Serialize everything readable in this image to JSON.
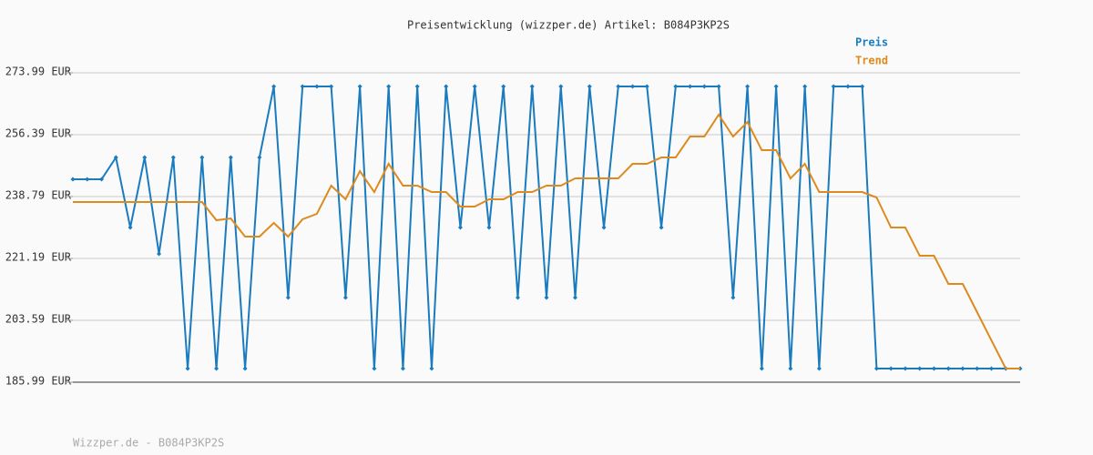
{
  "chart_data": {
    "type": "line",
    "title": "Preisentwicklung (wizzper.de) Artikel: B084P3KP2S",
    "footer": "Wizzper.de - B084P3KP2S",
    "ylim": [
      185.99,
      273.99
    ],
    "yticks": [
      {
        "value": 185.99,
        "label": "185.99 EUR"
      },
      {
        "value": 203.59,
        "label": "203.59 EUR"
      },
      {
        "value": 221.19,
        "label": "221.19 EUR"
      },
      {
        "value": 238.79,
        "label": "238.79 EUR"
      },
      {
        "value": 256.39,
        "label": "256.39 EUR"
      },
      {
        "value": 273.99,
        "label": "273.99 EUR"
      }
    ],
    "grid": true,
    "legend": "top-right",
    "series": [
      {
        "name": "Preis",
        "color": "#1a7bbf",
        "markers": true,
        "values": [
          243.7,
          243.7,
          243.7,
          249.91,
          229.99,
          249.91,
          222.48,
          249.91,
          189.87,
          249.91,
          189.87,
          249.91,
          189.87,
          249.91,
          270.1,
          210.06,
          270.1,
          270.1,
          270.1,
          210.06,
          270.1,
          189.87,
          270.1,
          189.87,
          270.1,
          189.87,
          270.1,
          229.99,
          270.1,
          229.99,
          270.1,
          210.06,
          270.1,
          210.06,
          270.1,
          210.06,
          270.1,
          229.99,
          270.1,
          270.1,
          270.1,
          229.99,
          270.1,
          270.1,
          270.1,
          270.1,
          210.06,
          270.1,
          189.87,
          270.1,
          189.87,
          270.1,
          189.87,
          270.1,
          270.1,
          270.1,
          189.87,
          189.87,
          189.87,
          189.87,
          189.87,
          189.87,
          189.87,
          189.87,
          189.87,
          189.87,
          189.87
        ]
      },
      {
        "name": "Trend",
        "color": "#dd8a1e",
        "markers": false,
        "values": [
          237.23,
          237.23,
          237.23,
          237.23,
          237.23,
          237.23,
          237.23,
          237.23,
          237.23,
          237.23,
          232.06,
          232.57,
          227.4,
          227.4,
          231.28,
          227.4,
          232.32,
          233.87,
          241.89,
          238.01,
          246.03,
          240.08,
          248.1,
          241.89,
          241.89,
          240.08,
          240.08,
          235.94,
          235.94,
          238.01,
          238.01,
          240.08,
          240.08,
          241.89,
          241.89,
          243.96,
          243.96,
          243.96,
          243.96,
          248.1,
          248.1,
          249.91,
          249.91,
          255.87,
          255.87,
          262.08,
          255.87,
          260.01,
          251.98,
          251.98,
          243.96,
          248.1,
          240.08,
          240.08,
          240.08,
          240.08,
          238.53,
          229.99,
          229.99,
          221.96,
          221.96,
          213.94,
          213.94,
          205.92,
          197.89,
          189.87,
          189.87
        ]
      }
    ]
  }
}
